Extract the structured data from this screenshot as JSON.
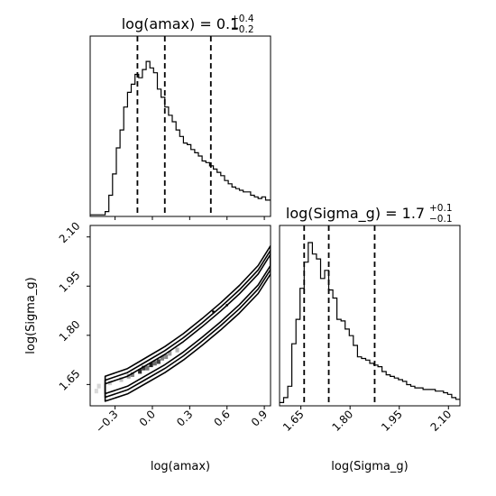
{
  "chart_data": [
    {
      "type": "histogram",
      "panel": "top-left",
      "title": "log(amax) = 0.1",
      "title_sup": "+0.4",
      "title_sub": "−0.2",
      "xlim": [
        -0.5,
        0.95
      ],
      "x_ticks": [
        -0.3,
        0.0,
        0.3,
        0.6,
        0.9
      ],
      "quantile_lines": [
        -0.12,
        0.1,
        0.47
      ],
      "bin_width": 0.03,
      "bin_start": -0.5,
      "counts": [
        0.01,
        0.01,
        0.01,
        0.01,
        0.03,
        0.13,
        0.26,
        0.42,
        0.53,
        0.67,
        0.76,
        0.81,
        0.87,
        0.85,
        0.9,
        0.95,
        0.91,
        0.88,
        0.78,
        0.73,
        0.67,
        0.62,
        0.58,
        0.53,
        0.49,
        0.45,
        0.44,
        0.41,
        0.39,
        0.37,
        0.34,
        0.33,
        0.31,
        0.29,
        0.27,
        0.25,
        0.22,
        0.2,
        0.18,
        0.17,
        0.16,
        0.15,
        0.15,
        0.13,
        0.12,
        0.11,
        0.12,
        0.1,
        0.1
      ]
    },
    {
      "type": "contour",
      "panel": "bottom-left",
      "xlabel": "log(amax)",
      "ylabel": "log(Sigma_g)",
      "xlim": [
        -0.5,
        0.95
      ],
      "ylim": [
        1.585,
        2.135
      ],
      "x_ticks": [
        -0.3,
        0.0,
        0.3,
        0.6,
        0.9
      ],
      "x_tick_labels": [
        "−0.3",
        "0.0",
        "0.3",
        "0.6",
        "0.9"
      ],
      "y_ticks": [
        1.65,
        1.8,
        1.95,
        2.1
      ],
      "y_tick_labels": [
        "1.65",
        "1.80",
        "1.95",
        "2.10"
      ],
      "ridge": {
        "x": [
          -0.38,
          -0.2,
          -0.05,
          0.1,
          0.25,
          0.4,
          0.55,
          0.7,
          0.85,
          0.95
        ],
        "y": [
          1.637,
          1.66,
          1.693,
          1.726,
          1.765,
          1.81,
          1.858,
          1.91,
          1.97,
          2.03
        ]
      },
      "contour_half_widths_y": [
        0.015,
        0.026,
        0.038
      ],
      "density_cells": [
        {
          "x": -0.1,
          "y": 1.69,
          "w": 0.9
        },
        {
          "x": -0.07,
          "y": 1.7,
          "w": 0.8
        },
        {
          "x": -0.04,
          "y": 1.7,
          "w": 0.55
        },
        {
          "x": -0.01,
          "y": 1.71,
          "w": 0.95
        },
        {
          "x": 0.02,
          "y": 1.715,
          "w": 0.6
        },
        {
          "x": 0.05,
          "y": 1.72,
          "w": 0.8
        },
        {
          "x": 0.08,
          "y": 1.73,
          "w": 0.5
        },
        {
          "x": 0.11,
          "y": 1.735,
          "w": 0.45
        },
        {
          "x": -0.16,
          "y": 1.68,
          "w": 0.5
        },
        {
          "x": -0.19,
          "y": 1.675,
          "w": 0.35
        },
        {
          "x": 0.14,
          "y": 1.745,
          "w": 0.35
        },
        {
          "x": 0.2,
          "y": 1.755,
          "w": 0.25
        },
        {
          "x": -0.25,
          "y": 1.665,
          "w": 0.2
        },
        {
          "x": -0.34,
          "y": 1.655,
          "w": 0.12
        },
        {
          "x": -0.43,
          "y": 1.645,
          "w": 0.1
        },
        {
          "x": -0.45,
          "y": 1.63,
          "w": 0.08
        }
      ],
      "outlier_points": [
        {
          "x": 0.6,
          "y": 1.892
        },
        {
          "x": 0.49,
          "y": 1.872
        }
      ]
    },
    {
      "type": "histogram",
      "panel": "bottom-right",
      "title": "log(Sigma_g) = 1.7",
      "title_sup": "+0.1",
      "title_sub": "−0.1",
      "xlabel": "log(Sigma_g)",
      "xlim": [
        1.585,
        2.135
      ],
      "x_ticks": [
        1.65,
        1.8,
        1.95,
        2.1
      ],
      "x_tick_labels": [
        "1.65",
        "1.80",
        "1.95",
        "2.10"
      ],
      "quantile_lines": [
        1.66,
        1.735,
        1.875
      ],
      "bin_width": 0.0125,
      "bin_start": 1.585,
      "counts": [
        0.02,
        0.05,
        0.12,
        0.38,
        0.53,
        0.72,
        0.88,
        1.0,
        0.93,
        0.9,
        0.78,
        0.83,
        0.71,
        0.66,
        0.53,
        0.52,
        0.47,
        0.43,
        0.37,
        0.3,
        0.29,
        0.28,
        0.26,
        0.25,
        0.24,
        0.21,
        0.19,
        0.18,
        0.17,
        0.16,
        0.15,
        0.13,
        0.12,
        0.11,
        0.11,
        0.1,
        0.1,
        0.1,
        0.09,
        0.09,
        0.08,
        0.07,
        0.05,
        0.04
      ]
    }
  ]
}
